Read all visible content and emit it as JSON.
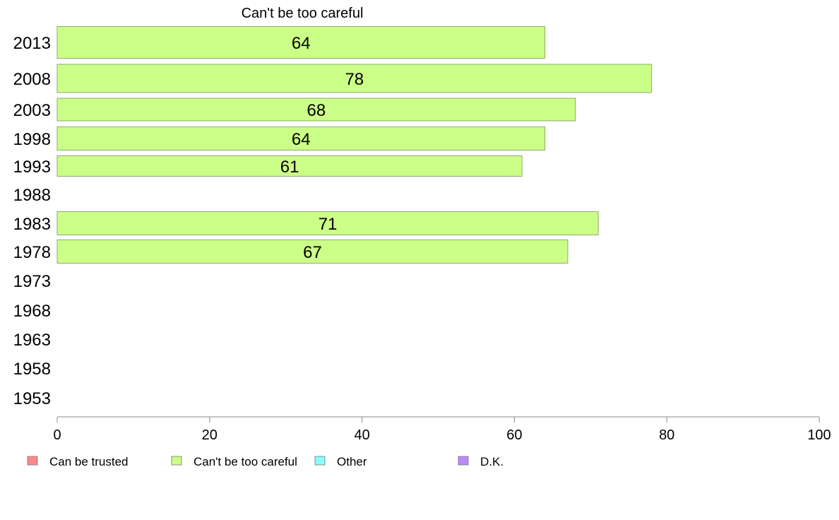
{
  "chart_data": {
    "type": "bar",
    "orientation": "horizontal",
    "title": "Can't be too careful",
    "categories": [
      "2013",
      "2008",
      "2003",
      "1998",
      "1993",
      "1988",
      "1983",
      "1978",
      "1973",
      "1968",
      "1963",
      "1958",
      "1953"
    ],
    "series": [
      {
        "name": "Can't be too careful",
        "values": [
          64,
          78,
          68,
          64,
          61,
          null,
          71,
          67,
          null,
          null,
          null,
          null,
          null
        ]
      }
    ],
    "data_labels": [
      "64",
      "78",
      "68",
      "64",
      "61",
      "",
      "71",
      "67",
      "",
      "",
      "",
      "",
      ""
    ],
    "xlim": [
      0,
      100
    ],
    "xticks": [
      "0",
      "20",
      "40",
      "60",
      "80",
      "100"
    ],
    "grid": false,
    "legend_position": "bottom",
    "bar_color": "#ccff88",
    "legend": [
      {
        "label": "Can be trusted",
        "color": "#ff8888"
      },
      {
        "label": "Can't be too careful",
        "color": "#ccff88"
      },
      {
        "label": "Other",
        "color": "#88ffff"
      },
      {
        "label": "D.K.",
        "color": "#bb88ff"
      }
    ]
  }
}
